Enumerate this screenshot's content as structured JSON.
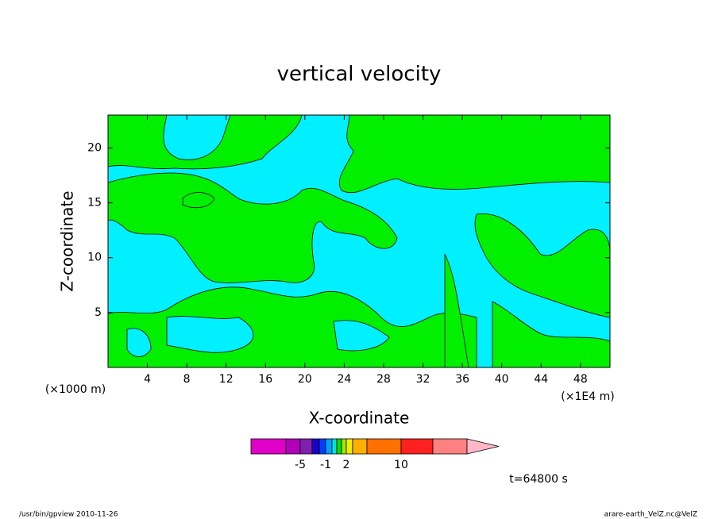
{
  "chart_data": {
    "type": "contour",
    "title": "vertical velocity",
    "xlabel": "X-coordinate",
    "ylabel": "Z-coordinate",
    "x_unit": "(×1E4 m)",
    "y_unit": "(×1000 m)",
    "xlim": [
      0,
      51
    ],
    "ylim": [
      0,
      23
    ],
    "xticks": [
      4,
      8,
      12,
      16,
      20,
      24,
      28,
      32,
      36,
      40,
      44,
      48
    ],
    "yticks": [
      5,
      10,
      15,
      20
    ],
    "field_colors": [
      "#00f0ff",
      "#00f000"
    ],
    "colorbar": {
      "colors": [
        "#e000c8",
        "#b000b8",
        "#8020b0",
        "#2000c8",
        "#0040ff",
        "#00a0ff",
        "#00e0e8",
        "#00e000",
        "#a0e800",
        "#f0f000",
        "#ffb000",
        "#ff7000",
        "#ff2020",
        "#ff8080",
        "#ffb8c8"
      ],
      "ticks": [
        -5,
        -1,
        2,
        10
      ]
    },
    "time_label": "t=64800 s",
    "footer_left": "/usr/bin/gpview  2010-11-26",
    "footer_right": "arare-earth_VelZ.nc@VelZ"
  }
}
